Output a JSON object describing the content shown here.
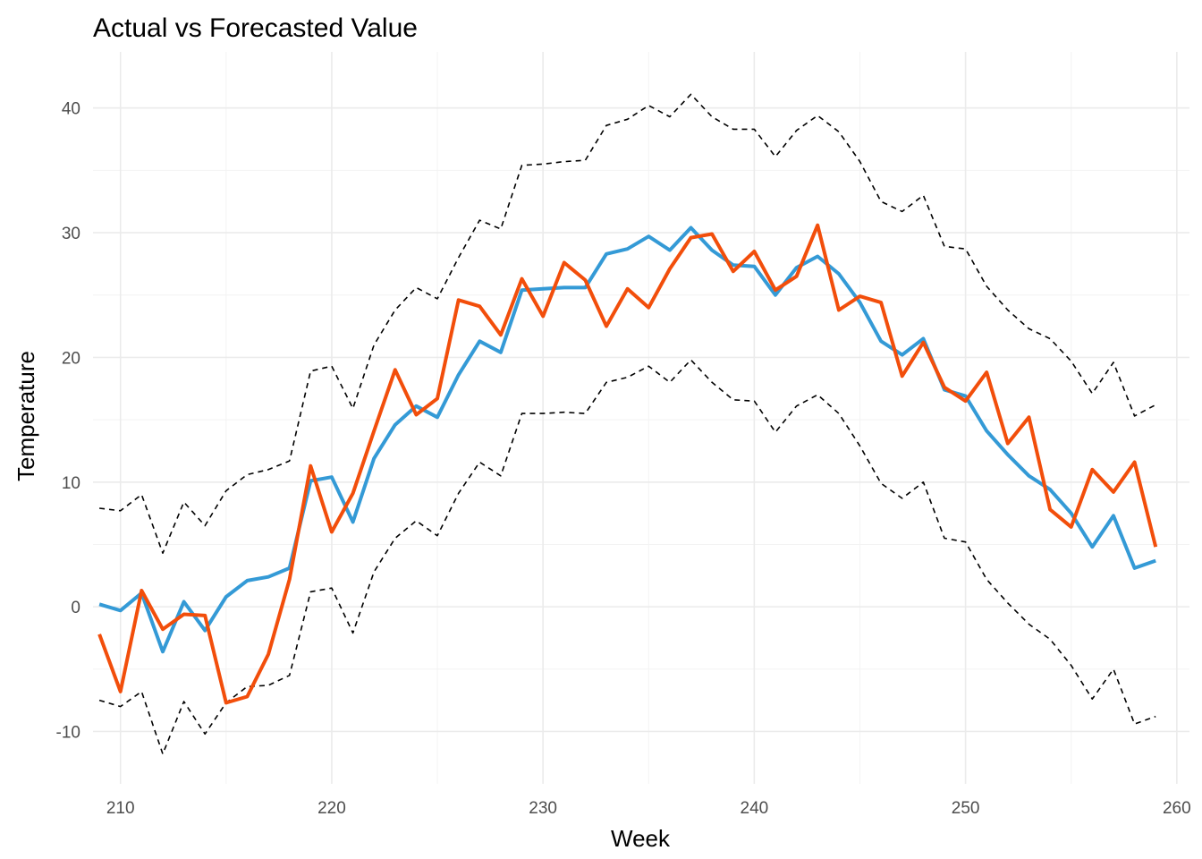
{
  "chart_data": {
    "type": "line",
    "title": "Actual vs Forecasted Value",
    "xlabel": "Week",
    "ylabel": "Temperature",
    "xlim": [
      208.7,
      260.6
    ],
    "ylim": [
      -14.2,
      44.5
    ],
    "x_ticks": [
      210,
      220,
      230,
      240,
      250,
      260
    ],
    "y_ticks": [
      -10,
      0,
      10,
      20,
      30,
      40
    ],
    "x_tick_labels": [
      "210",
      "220",
      "230",
      "240",
      "250",
      "260"
    ],
    "y_tick_labels": [
      "-10",
      "0",
      "10",
      "20",
      "30",
      "40"
    ],
    "grid": true,
    "legend": "none",
    "x": [
      209,
      210,
      211,
      212,
      213,
      214,
      215,
      216,
      217,
      218,
      219,
      220,
      221,
      222,
      223,
      224,
      225,
      226,
      227,
      228,
      229,
      230,
      231,
      232,
      233,
      234,
      235,
      236,
      237,
      238,
      239,
      240,
      241,
      242,
      243,
      244,
      245,
      246,
      247,
      248,
      249,
      250,
      251,
      252,
      253,
      254,
      255,
      256,
      257,
      258,
      259
    ],
    "series": [
      {
        "color": "#349ad6",
        "style": "solid",
        "values": [
          0.2,
          -0.3,
          1.1,
          -3.6,
          0.4,
          -1.9,
          0.8,
          2.1,
          2.4,
          3.1,
          10.1,
          10.4,
          6.8,
          11.9,
          14.6,
          16.1,
          15.2,
          18.6,
          21.3,
          20.4,
          25.4,
          25.5,
          25.6,
          25.6,
          28.3,
          28.7,
          29.7,
          28.6,
          30.4,
          28.6,
          27.4,
          27.3,
          25.0,
          27.2,
          28.1,
          26.7,
          24.4,
          21.3,
          20.2,
          21.5,
          17.4,
          16.9,
          14.1,
          12.2,
          10.5,
          9.4,
          7.5,
          4.8,
          7.3,
          3.1,
          3.7
        ]
      },
      {
        "color": "#f24e0b",
        "style": "solid",
        "values": [
          -2.2,
          -6.8,
          1.3,
          -1.8,
          -0.6,
          -0.7,
          -7.7,
          -7.2,
          -3.8,
          2.2,
          11.3,
          6.0,
          9.1,
          14.1,
          19.0,
          15.4,
          16.7,
          24.6,
          24.1,
          21.8,
          26.3,
          23.3,
          27.6,
          26.2,
          22.5,
          25.5,
          24.0,
          27.1,
          29.6,
          29.9,
          26.9,
          28.5,
          25.4,
          26.5,
          30.6,
          23.8,
          24.9,
          24.4,
          18.5,
          21.2,
          17.6,
          16.5,
          18.8,
          13.1,
          15.2,
          7.8,
          6.4,
          11.0,
          9.2,
          11.6,
          4.8
        ]
      },
      {
        "color": "#000000",
        "style": "dashed",
        "values": [
          7.9,
          7.7,
          9.0,
          4.3,
          8.4,
          6.5,
          9.3,
          10.6,
          11.0,
          11.7,
          18.9,
          19.3,
          15.9,
          21.0,
          23.8,
          25.6,
          24.7,
          28.0,
          31.0,
          30.3,
          35.4,
          35.5,
          35.7,
          35.8,
          38.6,
          39.1,
          40.2,
          39.3,
          41.1,
          39.3,
          38.3,
          38.3,
          36.1,
          38.2,
          39.4,
          38.1,
          35.7,
          32.5,
          31.7,
          33.0,
          28.9,
          28.7,
          25.7,
          23.8,
          22.3,
          21.5,
          19.7,
          17.1,
          19.6,
          15.3,
          16.2
        ]
      },
      {
        "color": "#000000",
        "style": "dashed",
        "values": [
          -7.5,
          -8.0,
          -6.8,
          -11.8,
          -7.6,
          -10.2,
          -7.7,
          -6.4,
          -6.3,
          -5.5,
          1.2,
          1.5,
          -2.1,
          2.8,
          5.5,
          6.9,
          5.7,
          9.1,
          11.6,
          10.5,
          15.5,
          15.5,
          15.6,
          15.5,
          18.0,
          18.4,
          19.3,
          18.0,
          19.8,
          18.0,
          16.6,
          16.5,
          14.0,
          16.1,
          17.0,
          15.5,
          12.9,
          9.9,
          8.7,
          10.0,
          5.5,
          5.2,
          2.2,
          0.3,
          -1.4,
          -2.6,
          -4.7,
          -7.4,
          -5.0,
          -9.4,
          -8.8
        ]
      }
    ]
  }
}
